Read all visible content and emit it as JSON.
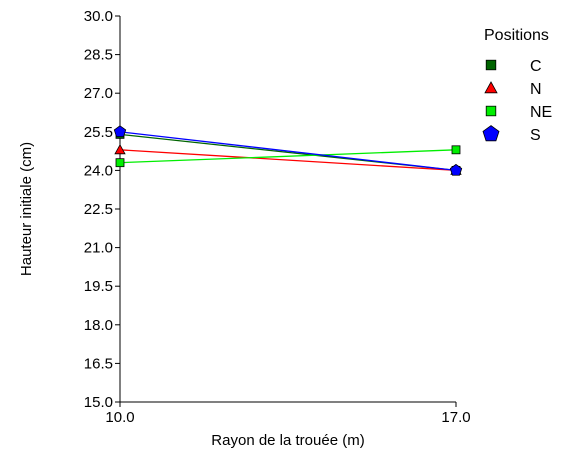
{
  "chart_data": {
    "type": "line",
    "title": "",
    "xlabel": "Rayon de la trouée (m)",
    "ylabel": "Hauteur initiale (cm)",
    "x": [
      10.0,
      17.0
    ],
    "x_ticks": [
      "10.0",
      "17.0"
    ],
    "ylim": [
      15.0,
      30.0
    ],
    "y_ticks": [
      "15.0",
      "16.5",
      "18.0",
      "19.5",
      "21.0",
      "22.5",
      "24.0",
      "25.5",
      "27.0",
      "28.5",
      "30.0"
    ],
    "grid": false,
    "legend_title": "Positions",
    "legend_position": "right",
    "series": [
      {
        "name": "C",
        "values": [
          25.4,
          24.0
        ],
        "color": "#006400",
        "marker": "square"
      },
      {
        "name": "N",
        "values": [
          24.8,
          24.0
        ],
        "color": "#ff0000",
        "marker": "triangle"
      },
      {
        "name": "NE",
        "values": [
          24.3,
          24.8
        ],
        "color": "#00ee00",
        "marker": "square"
      },
      {
        "name": "S",
        "values": [
          25.5,
          24.0
        ],
        "color": "#0000ff",
        "marker": "pentagon"
      }
    ]
  }
}
